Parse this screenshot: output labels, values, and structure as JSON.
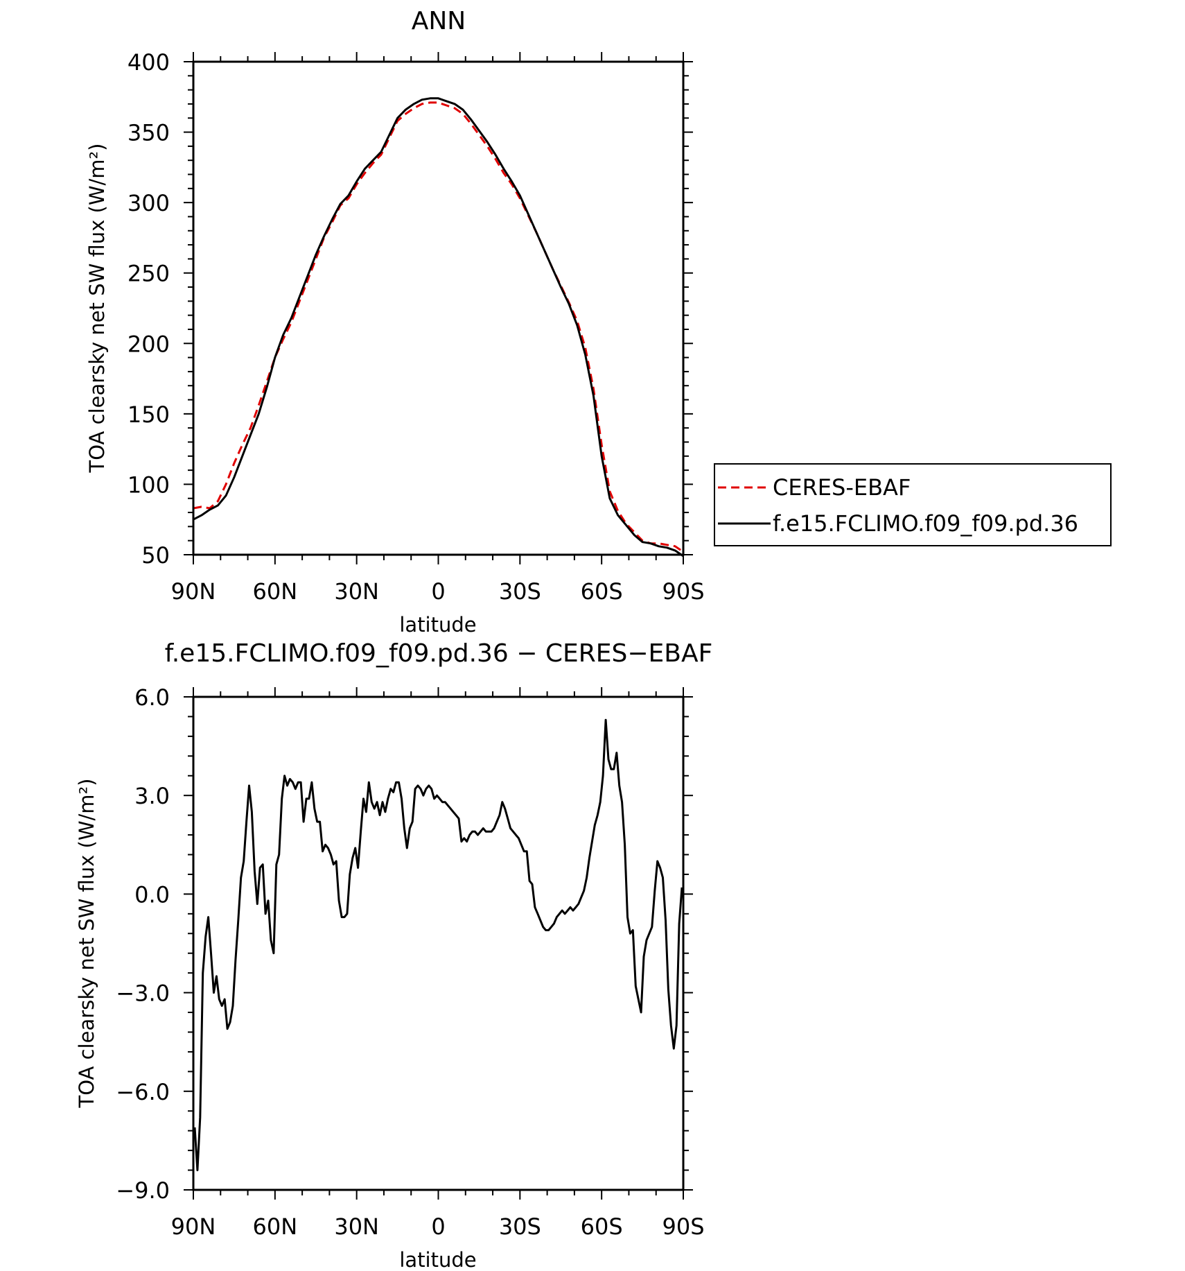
{
  "colors": {
    "obs": "#e00000",
    "model": "#000000"
  },
  "chart_data": [
    {
      "type": "line",
      "title": "ANN",
      "xlabel": "latitude",
      "ylabel": "TOA clearsky net SW flux (W/m²)",
      "xlim": [
        90,
        -90
      ],
      "ylim": [
        50,
        400
      ],
      "xticks": [
        90,
        60,
        30,
        0,
        -30,
        -60,
        -90
      ],
      "xticklabels": [
        "90N",
        "60N",
        "30N",
        "0",
        "30S",
        "60S",
        "90S"
      ],
      "yticks": [
        50,
        100,
        150,
        200,
        250,
        300,
        350,
        400
      ],
      "yticklabels": [
        "50",
        "100",
        "150",
        "200",
        "250",
        "300",
        "350",
        "400"
      ],
      "legend": {
        "position": "right",
        "entries": [
          "CERES-EBAF",
          "f.e15.FCLIMO.f09_f09.pd.36"
        ]
      },
      "series": [
        {
          "name": "CERES-EBAF",
          "style": "dashed",
          "x": [
            90,
            87,
            84,
            81,
            78,
            75,
            72,
            69,
            66,
            63,
            60,
            57,
            54,
            51,
            48,
            45,
            42,
            39,
            36,
            33,
            30,
            27,
            24,
            21,
            18,
            15,
            12,
            9,
            6,
            3,
            0,
            -3,
            -6,
            -9,
            -12,
            -15,
            -18,
            -21,
            -24,
            -27,
            -30,
            -33,
            -36,
            -39,
            -42,
            -45,
            -48,
            -51,
            -54,
            -57,
            -60,
            -63,
            -66,
            -69,
            -72,
            -75,
            -78,
            -81,
            -84,
            -87,
            -90
          ],
          "y": [
            83,
            84,
            83,
            88,
            100,
            115,
            128,
            140,
            156,
            173,
            190,
            203,
            215,
            230,
            245,
            260,
            275,
            286,
            298,
            303,
            313,
            321,
            328,
            334,
            346,
            358,
            363,
            367,
            370,
            371,
            371,
            369,
            367,
            363,
            356,
            348,
            340,
            331,
            321,
            313,
            303,
            291,
            279,
            266,
            253,
            241,
            229,
            216,
            197,
            168,
            128,
            95,
            81,
            72,
            66,
            60,
            58,
            58,
            57,
            56,
            52
          ]
        },
        {
          "name": "f.e15.FCLIMO.f09_f09.pd.36",
          "style": "solid",
          "x": [
            90,
            87,
            84,
            81,
            78,
            75,
            72,
            69,
            66,
            63,
            60,
            57,
            54,
            51,
            48,
            45,
            42,
            39,
            36,
            33,
            30,
            27,
            24,
            21,
            18,
            15,
            12,
            9,
            6,
            3,
            0,
            -3,
            -6,
            -9,
            -12,
            -15,
            -18,
            -21,
            -24,
            -27,
            -30,
            -33,
            -36,
            -39,
            -42,
            -45,
            -48,
            -51,
            -54,
            -57,
            -60,
            -63,
            -66,
            -69,
            -72,
            -75,
            -78,
            -81,
            -84,
            -87,
            -90
          ],
          "y": [
            75,
            78,
            82,
            85,
            92,
            105,
            120,
            135,
            150,
            169,
            190,
            206,
            218,
            233,
            248,
            263,
            276,
            288,
            299,
            305,
            315,
            324,
            330,
            336,
            348,
            360,
            366,
            370,
            373,
            374,
            374,
            372,
            370,
            366,
            359,
            351,
            343,
            334,
            324,
            315,
            305,
            292,
            279,
            266,
            253,
            240,
            228,
            213,
            192,
            163,
            120,
            90,
            78,
            71,
            64,
            59,
            58,
            56,
            55,
            53,
            49
          ]
        }
      ]
    },
    {
      "type": "line",
      "title": "f.e15.FCLIMO.f09_f09.pd.36 − CERES−EBAF",
      "xlabel": "latitude",
      "ylabel": "TOA clearsky net SW flux (W/m²)",
      "xlim": [
        90,
        -90
      ],
      "ylim": [
        -9,
        6
      ],
      "xticks": [
        90,
        60,
        30,
        0,
        -30,
        -60,
        -90
      ],
      "xticklabels": [
        "90N",
        "60N",
        "30N",
        "0",
        "30S",
        "60S",
        "90S"
      ],
      "yticks": [
        -9,
        -6,
        -3,
        0,
        3,
        6
      ],
      "yticklabels": [
        "−9.0",
        "−6.0",
        "−3.0",
        "0.0",
        "3.0",
        "6.0"
      ],
      "series": [
        {
          "style": "solid",
          "x": [
            89.5,
            88.5,
            87.5,
            86.5,
            85.5,
            84.5,
            83.5,
            82.5,
            81.5,
            80.5,
            79.5,
            78.5,
            77.5,
            76.5,
            75.5,
            74.5,
            73.5,
            72.5,
            71.5,
            70.5,
            69.5,
            68.5,
            67.5,
            66.5,
            65.5,
            64.5,
            63.5,
            62.5,
            61.5,
            60.5,
            59.5,
            58.5,
            57.5,
            56.5,
            55.5,
            54.5,
            53.5,
            52.5,
            51.5,
            50.5,
            49.5,
            48.5,
            47.5,
            46.5,
            45.5,
            44.5,
            43.5,
            42.5,
            41.5,
            40.5,
            39.5,
            38.5,
            37.5,
            36.5,
            35.5,
            34.5,
            33.5,
            32.5,
            31.5,
            30.5,
            29.5,
            28.5,
            27.5,
            26.5,
            25.5,
            24.5,
            23.5,
            22.5,
            21.5,
            20.5,
            19.5,
            18.5,
            17.5,
            16.5,
            15.5,
            14.5,
            13.5,
            12.5,
            11.5,
            10.5,
            9.5,
            8.5,
            7.5,
            6.5,
            5.5,
            4.5,
            3.5,
            2.5,
            1.5,
            0.5,
            -0.5,
            -1.5,
            -2.5,
            -3.5,
            -4.5,
            -5.5,
            -6.5,
            -7.5,
            -8.5,
            -9.5,
            -10.5,
            -11.5,
            -12.5,
            -13.5,
            -14.5,
            -15.5,
            -16.5,
            -17.5,
            -18.5,
            -19.5,
            -20.5,
            -21.5,
            -22.5,
            -23.5,
            -24.5,
            -25.5,
            -26.5,
            -27.5,
            -28.5,
            -29.5,
            -30.5,
            -31.5,
            -32.5,
            -33.5,
            -34.5,
            -35.5,
            -36.5,
            -37.5,
            -38.5,
            -39.5,
            -40.5,
            -41.5,
            -42.5,
            -43.5,
            -44.5,
            -45.5,
            -46.5,
            -47.5,
            -48.5,
            -49.5,
            -50.5,
            -51.5,
            -52.5,
            -53.5,
            -54.5,
            -55.5,
            -56.5,
            -57.5,
            -58.5,
            -59.5,
            -60.5,
            -61.5,
            -62.5,
            -63.5,
            -64.5,
            -65.5,
            -66.5,
            -67.5,
            -68.5,
            -69.5,
            -70.5,
            -71.5,
            -72.5,
            -73.5,
            -74.5,
            -75.5,
            -76.5,
            -77.5,
            -78.5,
            -79.5,
            -80.5,
            -81.5,
            -82.5,
            -83.5,
            -84.5,
            -85.5,
            -86.5,
            -87.5,
            -88.5,
            -89.5
          ],
          "y": [
            -7.1,
            -8.4,
            -6.8,
            -2.4,
            -1.3,
            -0.7,
            -1.8,
            -3.0,
            -2.5,
            -3.2,
            -3.4,
            -3.2,
            -4.1,
            -3.9,
            -3.4,
            -2.0,
            -0.8,
            0.5,
            1.0,
            2.2,
            3.3,
            2.5,
            0.7,
            -0.3,
            0.8,
            0.9,
            -0.6,
            -0.2,
            -1.4,
            -1.8,
            0.9,
            1.2,
            2.9,
            3.6,
            3.3,
            3.5,
            3.4,
            3.2,
            3.4,
            3.4,
            2.2,
            2.9,
            2.9,
            3.4,
            2.6,
            2.2,
            2.2,
            1.3,
            1.5,
            1.4,
            1.2,
            0.9,
            1.0,
            -0.2,
            -0.7,
            -0.7,
            -0.6,
            0.6,
            1.1,
            1.4,
            0.8,
            1.9,
            2.9,
            2.5,
            3.4,
            2.8,
            2.6,
            2.8,
            2.4,
            2.8,
            2.5,
            2.9,
            3.2,
            3.1,
            3.4,
            3.4,
            2.9,
            2.0,
            1.4,
            2.0,
            2.2,
            3.2,
            3.3,
            3.2,
            3.0,
            3.2,
            3.3,
            3.2,
            2.9,
            3.0,
            2.9,
            2.8,
            2.8,
            2.7,
            2.6,
            2.5,
            2.4,
            2.3,
            1.6,
            1.7,
            1.6,
            1.8,
            1.9,
            1.9,
            1.8,
            1.9,
            2.0,
            1.9,
            1.9,
            1.9,
            2.0,
            2.2,
            2.4,
            2.8,
            2.6,
            2.3,
            2.0,
            1.9,
            1.8,
            1.7,
            1.5,
            1.3,
            1.3,
            0.4,
            0.3,
            -0.4,
            -0.6,
            -0.8,
            -1.0,
            -1.1,
            -1.1,
            -1.0,
            -0.9,
            -0.7,
            -0.6,
            -0.5,
            -0.6,
            -0.5,
            -0.4,
            -0.5,
            -0.4,
            -0.3,
            -0.1,
            0.1,
            0.5,
            1.1,
            1.6,
            2.1,
            2.4,
            2.8,
            3.6,
            5.3,
            4.1,
            3.8,
            3.8,
            4.3,
            3.3,
            2.8,
            1.5,
            -0.7,
            -1.2,
            -1.1,
            -2.8,
            -3.2,
            -3.6,
            -1.9,
            -1.4,
            -1.2,
            -1.0,
            0.1,
            1.0,
            0.8,
            0.5,
            -0.8,
            -2.9,
            -4.0,
            -4.7,
            -4.0,
            -0.9,
            0.2
          ]
        }
      ]
    }
  ]
}
